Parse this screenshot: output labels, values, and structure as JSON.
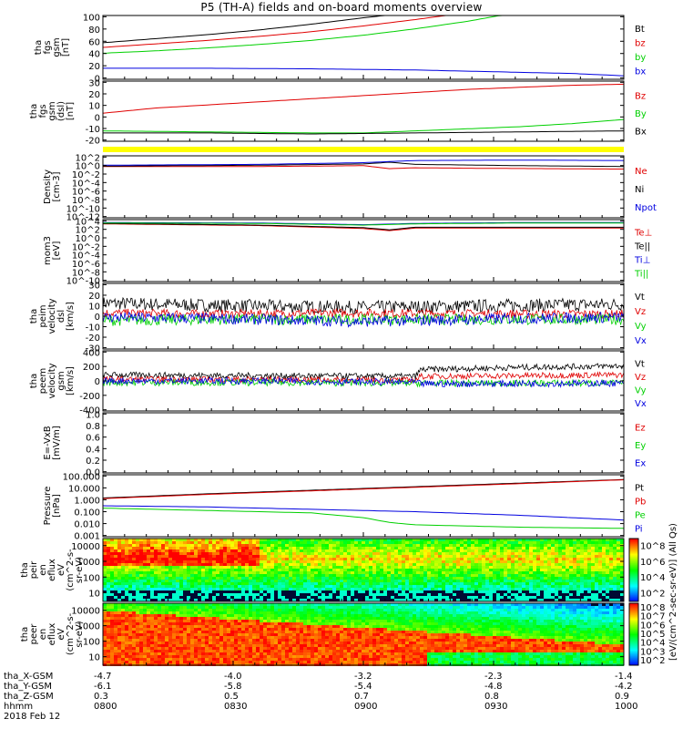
{
  "title": "P5 (TH-A) fields and on-board moments overview",
  "colors": {
    "black": "#000000",
    "red": "#e00000",
    "green": "#00d000",
    "blue": "#0000e0",
    "yellow": "#ffff00",
    "purple": "#800080"
  },
  "chart_data": [
    {
      "id": "fgs_total",
      "type": "line",
      "ylabel": [
        "tha",
        "fgs",
        "gsm",
        "[nT]"
      ],
      "yticks": [
        "0",
        "20",
        "40",
        "60",
        "80",
        "100"
      ],
      "ylim": [
        -10,
        100
      ],
      "legend": [
        {
          "label": "Bt",
          "color": "#000000"
        },
        {
          "label": "bz",
          "color": "#e00000"
        },
        {
          "label": "by",
          "color": "#00d000"
        },
        {
          "label": "bx",
          "color": "#0000e0"
        }
      ],
      "series": [
        {
          "name": "Bt",
          "color": "#000000",
          "x": [
            0,
            0.1,
            0.2,
            0.3,
            0.4,
            0.5,
            0.6
          ],
          "y": [
            53,
            60,
            67,
            75,
            85,
            96,
            106
          ]
        },
        {
          "name": "bz",
          "color": "#e00000",
          "x": [
            0,
            0.1,
            0.2,
            0.3,
            0.4,
            0.5,
            0.6,
            0.7
          ],
          "y": [
            45,
            51,
            57,
            64,
            72,
            82,
            93,
            105
          ]
        },
        {
          "name": "by",
          "color": "#00d000",
          "x": [
            0,
            0.1,
            0.2,
            0.3,
            0.4,
            0.5,
            0.6,
            0.7,
            0.8
          ],
          "y": [
            35,
            39,
            44,
            50,
            57,
            66,
            77,
            90,
            106
          ]
        },
        {
          "name": "bx",
          "color": "#0000e0",
          "x": [
            0,
            0.2,
            0.4,
            0.6,
            0.7,
            0.8,
            0.9,
            1.0
          ],
          "y": [
            9,
            9,
            8,
            6,
            4,
            2,
            0,
            -4
          ]
        }
      ]
    },
    {
      "id": "fgs_components",
      "type": "line",
      "ylabel": [
        "tha",
        "fgs",
        "gsm",
        "(dsl)",
        "[nT]"
      ],
      "yticks": [
        "-20",
        "-10",
        "0",
        "10",
        "20",
        "30"
      ],
      "ylim": [
        -25,
        33
      ],
      "legend": [
        {
          "label": "Bz",
          "color": "#e00000"
        },
        {
          "label": "By",
          "color": "#00d000"
        },
        {
          "label": "Bx",
          "color": "#000000"
        }
      ],
      "series": [
        {
          "name": "Bz",
          "color": "#e00000",
          "x": [
            0,
            0.1,
            0.2,
            0.3,
            0.4,
            0.5,
            0.6,
            0.7,
            0.8,
            0.9,
            1.0
          ],
          "y": [
            2,
            7,
            10,
            13,
            16,
            19,
            22,
            25,
            27,
            29,
            30
          ]
        },
        {
          "name": "By",
          "color": "#00d000",
          "x": [
            0,
            0.2,
            0.4,
            0.5,
            0.6,
            0.7,
            0.8,
            0.9,
            1.0
          ],
          "y": [
            -15,
            -16,
            -17,
            -17,
            -15,
            -13,
            -11,
            -8,
            -4
          ]
        },
        {
          "name": "Bx",
          "color": "#000000",
          "x": [
            0,
            0.2,
            0.4,
            0.6,
            0.8,
            1.0
          ],
          "y": [
            -17,
            -17,
            -18,
            -17,
            -16,
            -15
          ]
        }
      ]
    },
    {
      "id": "density",
      "type": "line",
      "log": true,
      "ylabel": [
        "Density",
        "[cm-3]"
      ],
      "yticks": [
        "10^-12",
        "10^-10",
        "10^-8",
        "10^-6",
        "10^-4",
        "10^-2",
        "10^0",
        "10^2"
      ],
      "ylim": [
        -12,
        2.5
      ],
      "legend": [
        {
          "label": "Ne",
          "color": "#e00000"
        },
        {
          "label": "Ni",
          "color": "#000000"
        },
        {
          "label": "Npot",
          "color": "#0000e0"
        }
      ],
      "series": [
        {
          "name": "Ne",
          "color": "#e00000",
          "x": [
            0,
            0.3,
            0.5,
            0.55,
            0.6,
            0.7,
            1.0
          ],
          "y": [
            0,
            0,
            0.2,
            -0.5,
            -0.3,
            -0.4,
            -0.6
          ]
        },
        {
          "name": "Ni",
          "color": "#000000",
          "x": [
            0,
            0.3,
            0.5,
            0.55,
            0.6,
            0.8,
            1.0
          ],
          "y": [
            0.1,
            0.3,
            0.6,
            1,
            0.5,
            0.2,
            0
          ]
        },
        {
          "name": "Npot",
          "color": "#0000e0",
          "x": [
            0,
            0.3,
            0.5,
            0.6,
            0.8,
            1.0
          ],
          "y": [
            0.3,
            0.5,
            0.9,
            1.4,
            1.5,
            1.4
          ]
        }
      ]
    },
    {
      "id": "temperature",
      "type": "line",
      "log": true,
      "ylabel": [
        "mom3",
        "[eV]"
      ],
      "yticks": [
        "10^-10",
        "10^-8",
        "10^-6",
        "10^-4",
        "10^-2",
        "10^0",
        "10^2",
        "10^4"
      ],
      "ylim": [
        -10,
        4.6
      ],
      "legend": [
        {
          "label": "Te⊥",
          "color": "#e00000"
        },
        {
          "label": "Te||",
          "color": "#000000"
        },
        {
          "label": "Ti⊥",
          "color": "#0000e0"
        },
        {
          "label": "Ti||",
          "color": "#00d000"
        }
      ],
      "series": [
        {
          "name": "Te⊥",
          "color": "#e00000",
          "x": [
            0,
            0.3,
            0.5,
            0.55,
            0.6,
            0.8,
            1.0
          ],
          "y": [
            3.6,
            3.2,
            2.5,
            2,
            2.6,
            2.6,
            2.6
          ]
        },
        {
          "name": "Te||",
          "color": "#000000",
          "x": [
            0,
            0.3,
            0.5,
            0.55,
            0.6,
            0.8,
            1.0
          ],
          "y": [
            3.7,
            3.3,
            2.7,
            2.2,
            2.8,
            2.8,
            2.8
          ]
        },
        {
          "name": "Ti⊥",
          "color": "#0000e0",
          "x": [
            0,
            0.3,
            0.5,
            0.6,
            0.8,
            1.0
          ],
          "y": [
            3.9,
            3.8,
            3.4,
            3.7,
            3.9,
            3.9
          ]
        },
        {
          "name": "Ti||",
          "color": "#00d000",
          "x": [
            0,
            0.3,
            0.5,
            0.6,
            0.8,
            1.0
          ],
          "y": [
            3.8,
            3.7,
            3.3,
            3.6,
            3.8,
            3.8
          ]
        }
      ]
    },
    {
      "id": "peim_velocity",
      "type": "line",
      "noisy": true,
      "ylabel": [
        "tha",
        "peim",
        "velocity",
        "dsl",
        "[km/s]"
      ],
      "yticks": [
        "-30",
        "-20",
        "-10",
        "0",
        "10",
        "20",
        "30"
      ],
      "ylim": [
        -30,
        30
      ],
      "legend": [
        {
          "label": "Vt",
          "color": "#000000"
        },
        {
          "label": "Vz",
          "color": "#e00000"
        },
        {
          "label": "Vy",
          "color": "#00d000"
        },
        {
          "label": "Vx",
          "color": "#0000e0"
        }
      ],
      "series": [
        {
          "name": "Vt",
          "color": "#000000",
          "x": [
            0,
            0.2,
            0.5,
            0.8,
            1.0
          ],
          "y": [
            12,
            10,
            8,
            10,
            11
          ],
          "noise": 6
        },
        {
          "name": "Vz",
          "color": "#e00000",
          "x": [
            0,
            0.2,
            0.5,
            0.8,
            1.0
          ],
          "y": [
            3,
            2,
            3,
            2,
            2
          ],
          "noise": 4
        },
        {
          "name": "Vy",
          "color": "#00d000",
          "x": [
            0,
            0.2,
            0.5,
            0.8,
            1.0
          ],
          "y": [
            -4,
            -3,
            -3,
            -3,
            -3
          ],
          "noise": 5
        },
        {
          "name": "Vx",
          "color": "#0000e0",
          "x": [
            0,
            0.2,
            0.5,
            0.8,
            1.0
          ],
          "y": [
            -1,
            -2,
            -5,
            -2,
            -1
          ],
          "noise": 5
        }
      ]
    },
    {
      "id": "peem_velocity",
      "type": "line",
      "noisy": true,
      "ylabel": [
        "tha",
        "peem",
        "velocity",
        "gsm",
        "[km/s]"
      ],
      "yticks": [
        "-400",
        "-200",
        "0",
        "200",
        "400"
      ],
      "ylim": [
        -400,
        400
      ],
      "legend": [
        {
          "label": "Vt",
          "color": "#000000"
        },
        {
          "label": "Vz",
          "color": "#e00000"
        },
        {
          "label": "Vy",
          "color": "#00d000"
        },
        {
          "label": "Vx",
          "color": "#0000e0"
        }
      ],
      "series": [
        {
          "name": "Vt",
          "color": "#000000",
          "x": [
            0,
            0.3,
            0.6,
            0.61,
            0.8,
            1.0
          ],
          "y": [
            80,
            70,
            60,
            150,
            180,
            200
          ],
          "noise": 40
        },
        {
          "name": "Vz",
          "color": "#e00000",
          "x": [
            0,
            0.3,
            0.6,
            0.61,
            1.0
          ],
          "y": [
            20,
            20,
            10,
            60,
            80
          ],
          "noise": 40
        },
        {
          "name": "Vy",
          "color": "#00d000",
          "x": [
            0,
            0.3,
            0.6,
            1.0
          ],
          "y": [
            -20,
            -20,
            -30,
            -30
          ],
          "noise": 45
        },
        {
          "name": "Vx",
          "color": "#0000e0",
          "x": [
            0,
            0.3,
            0.6,
            0.61,
            1.0
          ],
          "y": [
            0,
            0,
            -20,
            -40,
            -30
          ],
          "noise": 45
        }
      ]
    },
    {
      "id": "efield",
      "type": "line",
      "ylabel": [
        "E=-VxB",
        "[mV/m]"
      ],
      "yticks": [
        "0.0",
        "0.2",
        "0.4",
        "0.6",
        "0.8",
        "1.0"
      ],
      "ylim": [
        0,
        1
      ],
      "legend": [
        {
          "label": "Ez",
          "color": "#e00000"
        },
        {
          "label": "Ey",
          "color": "#00d000"
        },
        {
          "label": "Ex",
          "color": "#0000e0"
        }
      ],
      "series": []
    },
    {
      "id": "pressure",
      "type": "line",
      "log": true,
      "ylabel": [
        "Pressure",
        "[nPa]"
      ],
      "yticks": [
        "0.001",
        "0.010",
        "0.100",
        "1.000",
        "10.000",
        "100.000"
      ],
      "ylim": [
        -3,
        2.2
      ],
      "legend": [
        {
          "label": "Pt",
          "color": "#000000"
        },
        {
          "label": "Pb",
          "color": "#e00000"
        },
        {
          "label": "Pe",
          "color": "#00d000"
        },
        {
          "label": "Pi",
          "color": "#0000e0"
        }
      ],
      "series": [
        {
          "name": "Pt",
          "color": "#000000",
          "x": [
            0,
            0.2,
            0.4,
            0.6,
            0.8,
            1.0
          ],
          "y": [
            0.25,
            0.6,
            0.9,
            1.2,
            1.5,
            1.8
          ]
        },
        {
          "name": "Pb",
          "color": "#e00000",
          "x": [
            0,
            0.2,
            0.4,
            0.6,
            0.8,
            1.0
          ],
          "y": [
            0.2,
            0.55,
            0.85,
            1.15,
            1.45,
            1.78
          ]
        },
        {
          "name": "Pe",
          "color": "#00d000",
          "x": [
            0,
            0.2,
            0.4,
            0.5,
            0.55,
            0.6,
            0.8,
            1.0
          ],
          "y": [
            -0.6,
            -0.8,
            -1,
            -1.4,
            -1.8,
            -2,
            -2.2,
            -2.3
          ]
        },
        {
          "name": "Pi",
          "color": "#0000e0",
          "x": [
            0,
            0.2,
            0.4,
            0.6,
            0.8,
            1.0
          ],
          "y": [
            -0.4,
            -0.5,
            -0.7,
            -0.9,
            -1.2,
            -1.6
          ]
        }
      ]
    },
    {
      "id": "peir_spectrogram",
      "type": "heatmap",
      "ylabel": [
        "tha",
        "peir",
        "en",
        "eflux",
        "eV",
        "(cm^2-s-",
        "sr-eV)"
      ],
      "yticks": [
        "10",
        "100",
        "1000",
        "10000"
      ],
      "ylim": [
        0.7,
        4.3
      ],
      "colorbar_ticks": [
        "10^2",
        "10^4",
        "10^6",
        "10^8"
      ]
    },
    {
      "id": "peer_spectrogram",
      "type": "heatmap",
      "ylabel": [
        "tha",
        "peer",
        "en",
        "eflux",
        "eV",
        "(cm^2-s-",
        "sr-eV)"
      ],
      "yticks": [
        "10",
        "100",
        "1000",
        "10000"
      ],
      "ylim": [
        0.7,
        4.3
      ],
      "colorbar_ticks": [
        "10^2",
        "10^3",
        "10^4",
        "10^5",
        "10^6",
        "10^7",
        "10^8"
      ]
    }
  ],
  "colorbar_label": "[eV/(cm^2-sec-sr-eV)] (All Qs)",
  "footer": {
    "rows": [
      {
        "label": "tha_X-GSM",
        "values": [
          "-4.7",
          "-4.0",
          "-3.2",
          "-2.3",
          "-1.4"
        ]
      },
      {
        "label": "tha_Y-GSM",
        "values": [
          "-6.1",
          "-5.8",
          "-5.4",
          "-4.8",
          "-4.2"
        ]
      },
      {
        "label": "tha_Z-GSM",
        "values": [
          "0.3",
          "0.5",
          "0.7",
          "0.8",
          "0.9"
        ]
      },
      {
        "label": "hhmm",
        "values": [
          "0800",
          "0830",
          "0900",
          "0930",
          "1000"
        ]
      }
    ],
    "date": "2018 Feb 12"
  }
}
